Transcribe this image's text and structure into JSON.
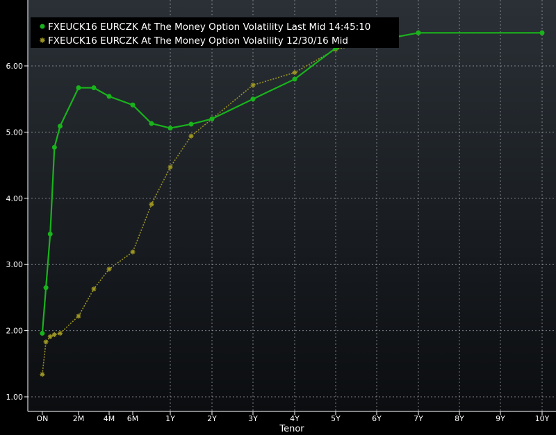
{
  "colors": {
    "background_top": "#2a3036",
    "background_bottom": "#0b0d10",
    "grid": "#9aa0a6",
    "axis": "#ffffff",
    "series_1": "#19b31c",
    "series_2": "#9c9523",
    "legend_bg": "#000000"
  },
  "chart_data": {
    "type": "line",
    "xlabel": "Tenor",
    "ylabel": "",
    "title": "",
    "ylim": [
      0.75,
      6.75
    ],
    "xlim": [
      -0.03,
      10.03
    ],
    "x_unit": "years",
    "y_ticks": [
      {
        "value": 1,
        "label": "1.00"
      },
      {
        "value": 2,
        "label": "2.00"
      },
      {
        "value": 3,
        "label": "3.00"
      },
      {
        "value": 4,
        "label": "4.00"
      },
      {
        "value": 5,
        "label": "5.00"
      },
      {
        "value": 6,
        "label": "6.00"
      }
    ],
    "x_ticks": [
      {
        "value": 0.0027,
        "label": "ON"
      },
      {
        "value": 0.1667,
        "label": "2M"
      },
      {
        "value": 0.3333,
        "label": "4M"
      },
      {
        "value": 0.5,
        "label": "6M"
      },
      {
        "value": 1,
        "label": "1Y"
      },
      {
        "value": 2,
        "label": "2Y"
      },
      {
        "value": 3,
        "label": "3Y"
      },
      {
        "value": 4,
        "label": "4Y"
      },
      {
        "value": 5,
        "label": "5Y"
      },
      {
        "value": 6,
        "label": "6Y"
      },
      {
        "value": 7,
        "label": "7Y"
      },
      {
        "value": 8,
        "label": "8Y"
      },
      {
        "value": 9,
        "label": "9Y"
      },
      {
        "value": 10,
        "label": "10Y"
      }
    ],
    "grid": true,
    "legend_position": "top-left",
    "series": [
      {
        "name": "FXEUCK16 EURCZK At The Money Option Volatility Last Mid 14:45:10",
        "marker": "dot",
        "line": "solid",
        "color_key": "series_1",
        "x": [
          0.0027,
          0.0192,
          0.0385,
          0.0577,
          0.0833,
          0.1667,
          0.25,
          0.3333,
          0.5,
          0.75,
          1,
          1.5,
          2,
          3,
          4,
          5,
          7,
          10
        ],
        "y": [
          1.96,
          2.65,
          3.46,
          4.77,
          5.09,
          5.67,
          5.67,
          5.54,
          5.41,
          5.13,
          5.06,
          5.12,
          5.2,
          5.5,
          5.8,
          6.27,
          6.5,
          6.5
        ]
      },
      {
        "name": "FXEUCK16 EURCZK At The Money Option Volatility 12/30/16 Mid",
        "marker": "star",
        "line": "dotted",
        "color_key": "series_2",
        "x": [
          0.0027,
          0.0192,
          0.0385,
          0.0577,
          0.0833,
          0.1667,
          0.25,
          0.3333,
          0.5,
          0.75,
          1,
          1.5,
          2,
          3,
          4,
          5,
          7,
          10
        ],
        "y": [
          1.34,
          1.83,
          1.91,
          1.94,
          1.96,
          2.22,
          2.63,
          2.93,
          3.19,
          3.91,
          4.47,
          4.94,
          5.2,
          5.71,
          5.9,
          6.25,
          6.5,
          6.5
        ]
      }
    ]
  }
}
